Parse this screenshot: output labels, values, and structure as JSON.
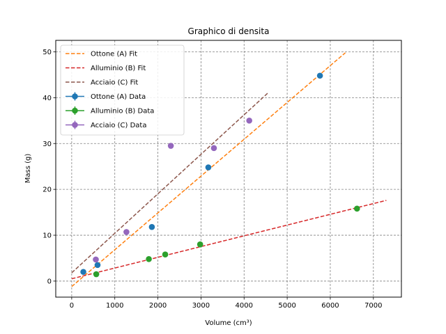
{
  "chart_data": {
    "type": "scatter",
    "title": "Graphico di densita",
    "xlabel": "Volume (cm³)",
    "ylabel": "Mass (g)",
    "xlim": [
      -370,
      7650
    ],
    "ylim": [
      -3.5,
      52.5
    ],
    "xticks": [
      0,
      1000,
      2000,
      3000,
      4000,
      5000,
      6000,
      7000
    ],
    "yticks": [
      0,
      10,
      20,
      30,
      40,
      50
    ],
    "grid": true,
    "legend_position": "top-left",
    "fits": [
      {
        "name": "Ottone (A) Fit",
        "color": "#ff7f0e",
        "x": [
          0,
          6350
        ],
        "y": [
          -1.2,
          49.8
        ]
      },
      {
        "name": "Alluminio (B) Fit",
        "color": "#d62728",
        "x": [
          0,
          7300
        ],
        "y": [
          0.5,
          17.6
        ]
      },
      {
        "name": "Acciaio (C) Fit",
        "color": "#8c564b",
        "x": [
          0,
          4550
        ],
        "y": [
          1.8,
          41.0
        ]
      }
    ],
    "series": [
      {
        "name": "Ottone (A) Data",
        "color": "#1f77b4",
        "x": [
          270,
          600,
          1860,
          3170,
          5760
        ],
        "y": [
          2.0,
          3.5,
          11.8,
          24.8,
          44.8
        ]
      },
      {
        "name": "Alluminio (B) Data",
        "color": "#2ca02c",
        "x": [
          570,
          1790,
          2170,
          2980,
          6620
        ],
        "y": [
          1.5,
          4.8,
          5.8,
          8.0,
          15.8
        ]
      },
      {
        "name": "Acciaio (C) Data",
        "color": "#9467bd",
        "x": [
          560,
          1270,
          2300,
          3300,
          4120
        ],
        "y": [
          4.7,
          10.7,
          29.5,
          29.0,
          35.0
        ]
      }
    ]
  }
}
